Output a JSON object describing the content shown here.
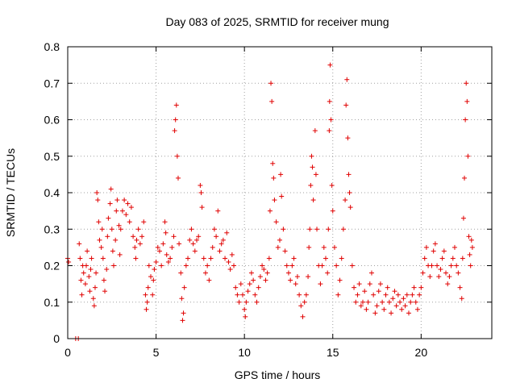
{
  "chart_data": {
    "type": "scatter",
    "title": "Day 083 of 2025, SRMTID for receiver mung",
    "xlabel": "GPS time / hours",
    "ylabel": "SRMTID / TECUs",
    "xlim": [
      0,
      24
    ],
    "ylim": [
      0,
      0.8
    ],
    "x_ticks": [
      0,
      5,
      10,
      15,
      20
    ],
    "x_tick_labels": [
      "0",
      "5",
      "10",
      "15",
      "20"
    ],
    "y_ticks": [
      0,
      0.1,
      0.2,
      0.3,
      0.4,
      0.5,
      0.6,
      0.7,
      0.8
    ],
    "y_tick_labels": [
      "0",
      "0.1",
      "0.2",
      "0.3",
      "0.4",
      "0.5",
      "0.6",
      "0.7",
      "0.8"
    ],
    "grid": true,
    "marker": "+",
    "marker_color": "#e00000",
    "series": [
      {
        "name": "SRMTID",
        "points": [
          [
            0.0,
            0.22
          ],
          [
            0.05,
            0.21
          ],
          [
            0.45,
            0.0
          ],
          [
            0.6,
            0.0
          ],
          [
            0.65,
            0.26
          ],
          [
            0.7,
            0.22
          ],
          [
            0.75,
            0.16
          ],
          [
            0.8,
            0.12
          ],
          [
            0.85,
            0.2
          ],
          [
            0.9,
            0.18
          ],
          [
            1.0,
            0.15
          ],
          [
            1.05,
            0.2
          ],
          [
            1.1,
            0.24
          ],
          [
            1.2,
            0.17
          ],
          [
            1.25,
            0.13
          ],
          [
            1.3,
            0.19
          ],
          [
            1.35,
            0.22
          ],
          [
            1.45,
            0.11
          ],
          [
            1.5,
            0.09
          ],
          [
            1.55,
            0.14
          ],
          [
            1.6,
            0.18
          ],
          [
            1.65,
            0.4
          ],
          [
            1.7,
            0.38
          ],
          [
            1.75,
            0.32
          ],
          [
            1.8,
            0.27
          ],
          [
            1.9,
            0.25
          ],
          [
            1.95,
            0.3
          ],
          [
            2.0,
            0.22
          ],
          [
            2.05,
            0.16
          ],
          [
            2.1,
            0.13
          ],
          [
            2.2,
            0.19
          ],
          [
            2.25,
            0.28
          ],
          [
            2.3,
            0.33
          ],
          [
            2.4,
            0.37
          ],
          [
            2.45,
            0.41
          ],
          [
            2.5,
            0.3
          ],
          [
            2.55,
            0.24
          ],
          [
            2.6,
            0.2
          ],
          [
            2.7,
            0.27
          ],
          [
            2.75,
            0.35
          ],
          [
            2.8,
            0.38
          ],
          [
            2.9,
            0.31
          ],
          [
            2.95,
            0.23
          ],
          [
            3.0,
            0.3
          ],
          [
            3.1,
            0.35
          ],
          [
            3.2,
            0.38
          ],
          [
            3.3,
            0.34
          ],
          [
            3.4,
            0.37
          ],
          [
            3.5,
            0.32
          ],
          [
            3.6,
            0.36
          ],
          [
            3.7,
            0.28
          ],
          [
            3.8,
            0.25
          ],
          [
            3.85,
            0.22
          ],
          [
            3.9,
            0.27
          ],
          [
            4.0,
            0.3
          ],
          [
            4.1,
            0.26
          ],
          [
            4.2,
            0.28
          ],
          [
            4.3,
            0.32
          ],
          [
            4.4,
            0.12
          ],
          [
            4.45,
            0.08
          ],
          [
            4.5,
            0.1
          ],
          [
            4.55,
            0.14
          ],
          [
            4.6,
            0.2
          ],
          [
            4.7,
            0.17
          ],
          [
            4.8,
            0.12
          ],
          [
            4.85,
            0.16
          ],
          [
            4.9,
            0.19
          ],
          [
            5.0,
            0.21
          ],
          [
            5.1,
            0.25
          ],
          [
            5.2,
            0.24
          ],
          [
            5.3,
            0.2
          ],
          [
            5.4,
            0.26
          ],
          [
            5.5,
            0.32
          ],
          [
            5.55,
            0.29
          ],
          [
            5.6,
            0.23
          ],
          [
            5.7,
            0.21
          ],
          [
            5.8,
            0.22
          ],
          [
            5.9,
            0.25
          ],
          [
            6.0,
            0.28
          ],
          [
            6.05,
            0.57
          ],
          [
            6.1,
            0.6
          ],
          [
            6.15,
            0.64
          ],
          [
            6.2,
            0.5
          ],
          [
            6.25,
            0.44
          ],
          [
            6.3,
            0.26
          ],
          [
            6.4,
            0.18
          ],
          [
            6.45,
            0.11
          ],
          [
            6.5,
            0.05
          ],
          [
            6.55,
            0.07
          ],
          [
            6.6,
            0.14
          ],
          [
            6.7,
            0.2
          ],
          [
            6.8,
            0.22
          ],
          [
            6.9,
            0.27
          ],
          [
            7.0,
            0.3
          ],
          [
            7.1,
            0.26
          ],
          [
            7.2,
            0.24
          ],
          [
            7.3,
            0.27
          ],
          [
            7.4,
            0.28
          ],
          [
            7.5,
            0.42
          ],
          [
            7.55,
            0.4
          ],
          [
            7.6,
            0.36
          ],
          [
            7.7,
            0.22
          ],
          [
            7.8,
            0.18
          ],
          [
            7.9,
            0.2
          ],
          [
            8.0,
            0.16
          ],
          [
            8.1,
            0.22
          ],
          [
            8.2,
            0.25
          ],
          [
            8.3,
            0.3
          ],
          [
            8.4,
            0.28
          ],
          [
            8.5,
            0.35
          ],
          [
            8.6,
            0.24
          ],
          [
            8.7,
            0.26
          ],
          [
            8.8,
            0.27
          ],
          [
            8.9,
            0.22
          ],
          [
            9.0,
            0.29
          ],
          [
            9.1,
            0.21
          ],
          [
            9.2,
            0.19
          ],
          [
            9.3,
            0.23
          ],
          [
            9.4,
            0.2
          ],
          [
            9.5,
            0.14
          ],
          [
            9.6,
            0.12
          ],
          [
            9.7,
            0.1
          ],
          [
            9.8,
            0.15
          ],
          [
            9.9,
            0.12
          ],
          [
            10.0,
            0.08
          ],
          [
            10.05,
            0.06
          ],
          [
            10.1,
            0.1
          ],
          [
            10.2,
            0.13
          ],
          [
            10.3,
            0.15
          ],
          [
            10.4,
            0.18
          ],
          [
            10.5,
            0.16
          ],
          [
            10.6,
            0.12
          ],
          [
            10.7,
            0.1
          ],
          [
            10.8,
            0.14
          ],
          [
            10.9,
            0.17
          ],
          [
            11.0,
            0.2
          ],
          [
            11.1,
            0.19
          ],
          [
            11.2,
            0.16
          ],
          [
            11.3,
            0.18
          ],
          [
            11.4,
            0.22
          ],
          [
            11.45,
            0.35
          ],
          [
            11.5,
            0.7
          ],
          [
            11.55,
            0.65
          ],
          [
            11.6,
            0.48
          ],
          [
            11.65,
            0.44
          ],
          [
            11.7,
            0.38
          ],
          [
            11.8,
            0.32
          ],
          [
            11.9,
            0.25
          ],
          [
            12.0,
            0.27
          ],
          [
            12.05,
            0.45
          ],
          [
            12.1,
            0.39
          ],
          [
            12.2,
            0.3
          ],
          [
            12.3,
            0.24
          ],
          [
            12.4,
            0.2
          ],
          [
            12.5,
            0.18
          ],
          [
            12.6,
            0.16
          ],
          [
            12.7,
            0.2
          ],
          [
            12.8,
            0.22
          ],
          [
            12.9,
            0.15
          ],
          [
            13.0,
            0.17
          ],
          [
            13.1,
            0.12
          ],
          [
            13.2,
            0.09
          ],
          [
            13.3,
            0.06
          ],
          [
            13.4,
            0.1
          ],
          [
            13.5,
            0.12
          ],
          [
            13.6,
            0.17
          ],
          [
            13.65,
            0.25
          ],
          [
            13.7,
            0.3
          ],
          [
            13.75,
            0.42
          ],
          [
            13.8,
            0.5
          ],
          [
            13.85,
            0.47
          ],
          [
            13.9,
            0.38
          ],
          [
            14.0,
            0.57
          ],
          [
            14.05,
            0.45
          ],
          [
            14.1,
            0.3
          ],
          [
            14.2,
            0.2
          ],
          [
            14.3,
            0.15
          ],
          [
            14.4,
            0.2
          ],
          [
            14.5,
            0.25
          ],
          [
            14.6,
            0.22
          ],
          [
            14.7,
            0.18
          ],
          [
            14.75,
            0.3
          ],
          [
            14.8,
            0.57
          ],
          [
            14.82,
            0.65
          ],
          [
            14.85,
            0.75
          ],
          [
            14.9,
            0.6
          ],
          [
            14.95,
            0.42
          ],
          [
            15.0,
            0.35
          ],
          [
            15.1,
            0.25
          ],
          [
            15.2,
            0.2
          ],
          [
            15.3,
            0.12
          ],
          [
            15.4,
            0.16
          ],
          [
            15.5,
            0.22
          ],
          [
            15.6,
            0.3
          ],
          [
            15.7,
            0.38
          ],
          [
            15.75,
            0.64
          ],
          [
            15.8,
            0.71
          ],
          [
            15.85,
            0.55
          ],
          [
            15.9,
            0.45
          ],
          [
            15.95,
            0.4
          ],
          [
            16.0,
            0.36
          ],
          [
            16.1,
            0.2
          ],
          [
            16.2,
            0.14
          ],
          [
            16.3,
            0.1
          ],
          [
            16.4,
            0.12
          ],
          [
            16.5,
            0.15
          ],
          [
            16.6,
            0.09
          ],
          [
            16.7,
            0.1
          ],
          [
            16.8,
            0.13
          ],
          [
            16.9,
            0.08
          ],
          [
            17.0,
            0.1
          ],
          [
            17.1,
            0.15
          ],
          [
            17.2,
            0.18
          ],
          [
            17.3,
            0.12
          ],
          [
            17.4,
            0.07
          ],
          [
            17.5,
            0.09
          ],
          [
            17.6,
            0.13
          ],
          [
            17.7,
            0.15
          ],
          [
            17.8,
            0.1
          ],
          [
            17.9,
            0.08
          ],
          [
            18.0,
            0.12
          ],
          [
            18.1,
            0.14
          ],
          [
            18.2,
            0.1
          ],
          [
            18.3,
            0.07
          ],
          [
            18.4,
            0.11
          ],
          [
            18.5,
            0.13
          ],
          [
            18.6,
            0.09
          ],
          [
            18.7,
            0.12
          ],
          [
            18.8,
            0.1
          ],
          [
            18.9,
            0.08
          ],
          [
            19.0,
            0.11
          ],
          [
            19.1,
            0.09
          ],
          [
            19.2,
            0.12
          ],
          [
            19.3,
            0.07
          ],
          [
            19.4,
            0.1
          ],
          [
            19.5,
            0.12
          ],
          [
            19.6,
            0.14
          ],
          [
            19.7,
            0.1
          ],
          [
            19.8,
            0.08
          ],
          [
            19.9,
            0.12
          ],
          [
            20.0,
            0.14
          ],
          [
            20.1,
            0.18
          ],
          [
            20.2,
            0.22
          ],
          [
            20.3,
            0.25
          ],
          [
            20.4,
            0.2
          ],
          [
            20.5,
            0.17
          ],
          [
            20.6,
            0.2
          ],
          [
            20.7,
            0.24
          ],
          [
            20.8,
            0.26
          ],
          [
            20.9,
            0.2
          ],
          [
            21.0,
            0.17
          ],
          [
            21.1,
            0.19
          ],
          [
            21.2,
            0.22
          ],
          [
            21.3,
            0.24
          ],
          [
            21.4,
            0.18
          ],
          [
            21.5,
            0.15
          ],
          [
            21.6,
            0.17
          ],
          [
            21.7,
            0.2
          ],
          [
            21.8,
            0.22
          ],
          [
            21.9,
            0.25
          ],
          [
            22.0,
            0.2
          ],
          [
            22.1,
            0.18
          ],
          [
            22.2,
            0.14
          ],
          [
            22.3,
            0.11
          ],
          [
            22.35,
            0.22
          ],
          [
            22.4,
            0.33
          ],
          [
            22.45,
            0.44
          ],
          [
            22.5,
            0.6
          ],
          [
            22.55,
            0.7
          ],
          [
            22.6,
            0.65
          ],
          [
            22.65,
            0.5
          ],
          [
            22.7,
            0.28
          ],
          [
            22.75,
            0.23
          ],
          [
            22.8,
            0.2
          ],
          [
            22.85,
            0.27
          ],
          [
            22.9,
            0.25
          ]
        ]
      }
    ]
  }
}
